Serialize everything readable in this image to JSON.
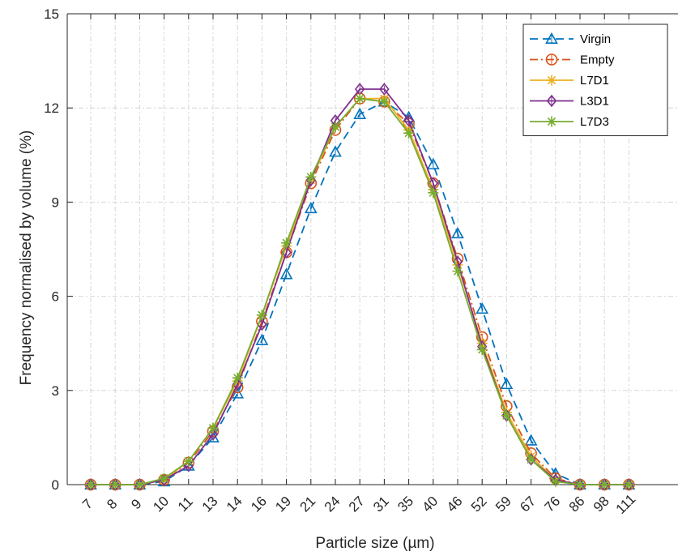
{
  "chart_data": {
    "type": "line",
    "title": "",
    "xlabel": "Particle size (µm)",
    "ylabel": "Frequency normalised by volume (%)",
    "categories": [
      "7",
      "8",
      "9",
      "10",
      "11",
      "13",
      "14",
      "16",
      "19",
      "21",
      "24",
      "27",
      "31",
      "35",
      "40",
      "46",
      "52",
      "59",
      "67",
      "76",
      "86",
      "98",
      "111"
    ],
    "ylim": [
      0,
      15
    ],
    "yticks": [
      "0",
      "3",
      "6",
      "9",
      "12",
      "15"
    ],
    "grid": true,
    "legend_position": "top-right",
    "series": [
      {
        "name": "Virgin",
        "color": "#0072BD",
        "marker": "triangle",
        "dash": "dashed",
        "values": [
          0,
          0,
          0,
          0.1,
          0.6,
          1.5,
          2.9,
          4.6,
          6.7,
          8.8,
          10.6,
          11.8,
          12.2,
          11.7,
          10.2,
          8.0,
          5.6,
          3.2,
          1.4,
          0.35,
          0,
          0,
          0
        ]
      },
      {
        "name": "Empty",
        "color": "#D95319",
        "marker": "circle",
        "dash": "dashdot",
        "values": [
          0,
          0,
          0,
          0.15,
          0.7,
          1.7,
          3.1,
          5.2,
          7.4,
          9.6,
          11.3,
          12.3,
          12.2,
          11.5,
          9.6,
          7.2,
          4.7,
          2.5,
          1.0,
          0.2,
          0,
          0,
          0
        ]
      },
      {
        "name": "L7D1",
        "color": "#EDB120",
        "marker": "star",
        "dash": "solid",
        "values": [
          0,
          0,
          0,
          0.15,
          0.75,
          1.8,
          3.3,
          5.4,
          7.6,
          9.7,
          11.4,
          12.3,
          12.3,
          11.3,
          9.4,
          7.0,
          4.5,
          2.3,
          0.9,
          0.15,
          0,
          0,
          0
        ]
      },
      {
        "name": "L3D1",
        "color": "#7E2F8E",
        "marker": "diamond",
        "dash": "solid",
        "values": [
          0,
          0,
          0,
          0.15,
          0.6,
          1.6,
          3.2,
          5.1,
          7.4,
          9.7,
          11.6,
          12.6,
          12.6,
          11.6,
          9.6,
          7.1,
          4.4,
          2.2,
          0.8,
          0.15,
          0,
          0,
          0
        ]
      },
      {
        "name": "L7D3",
        "color": "#77AC30",
        "marker": "asterisk",
        "dash": "solid",
        "values": [
          0,
          0,
          0,
          0.2,
          0.75,
          1.8,
          3.4,
          5.4,
          7.7,
          9.8,
          11.4,
          12.3,
          12.2,
          11.2,
          9.3,
          6.8,
          4.3,
          2.2,
          0.8,
          0.1,
          0,
          0,
          0
        ]
      }
    ]
  }
}
